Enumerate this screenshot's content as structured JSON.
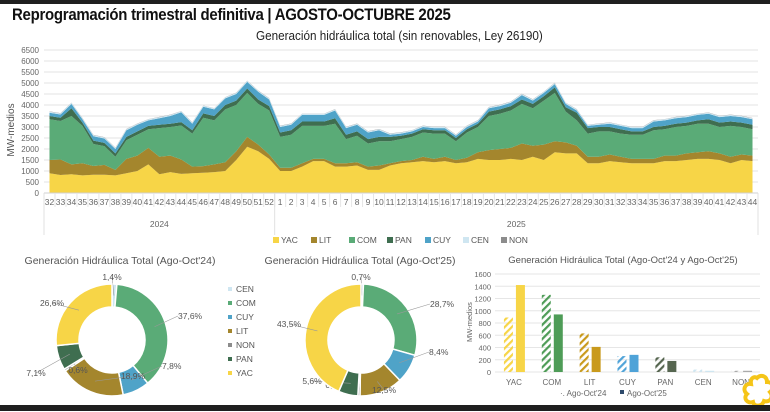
{
  "header": {
    "title": "Reprogramación trimestral definitiva | AGOSTO-OCTUBRE 2025",
    "subtitle": "Generación hidráulica total (sin renovables, Ley 26190)"
  },
  "chart_data": [
    {
      "type": "area",
      "stacked": true,
      "title": "Generación hidráulica total (sin renovables, Ley 26190)",
      "xlabel": "",
      "ylabel": "MW-medios",
      "ylim": [
        0,
        6500
      ],
      "yticks": [
        0,
        500,
        1000,
        1500,
        2000,
        2500,
        3000,
        3500,
        4000,
        4500,
        5000,
        5500,
        6000,
        6500
      ],
      "grid": true,
      "legend": "bottom",
      "x_groups": [
        {
          "label": "2024",
          "weeks": [
            "32",
            "33",
            "34",
            "35",
            "36",
            "37",
            "38",
            "39",
            "40",
            "41",
            "42",
            "43",
            "44",
            "45",
            "46",
            "47",
            "48",
            "49",
            "50",
            "51",
            "52"
          ]
        },
        {
          "label": "2025",
          "weeks": [
            "1",
            "2",
            "3",
            "4",
            "5",
            "6",
            "7",
            "8",
            "9",
            "10",
            "11",
            "12",
            "13",
            "14",
            "15",
            "16",
            "17",
            "18",
            "19",
            "20",
            "21",
            "22",
            "23",
            "24",
            "25",
            "26",
            "27",
            "28",
            "29",
            "30",
            "31",
            "32",
            "33",
            "34",
            "35",
            "36",
            "37",
            "38",
            "39",
            "40",
            "41",
            "42",
            "43",
            "44"
          ]
        }
      ],
      "series": [
        {
          "name": "YAC",
          "color": "#f7d547",
          "values": [
            900,
            820,
            850,
            800,
            830,
            830,
            800,
            900,
            1000,
            1300,
            850,
            950,
            870,
            900,
            920,
            950,
            1000,
            1500,
            2100,
            1900,
            1550,
            1000,
            1000,
            1200,
            1450,
            1450,
            1200,
            1200,
            1250,
            1050,
            1050,
            1250,
            1350,
            1400,
            1450,
            1400,
            1450,
            1350,
            1400,
            1550,
            1500,
            1500,
            1550,
            1500,
            1650,
            1500,
            1850,
            1800,
            1800,
            1350,
            1350,
            1450,
            1400,
            1350,
            1350,
            1350,
            1450,
            1450,
            1500,
            1550,
            1550,
            1500,
            1350,
            1500,
            1450
          ]
        },
        {
          "name": "LIT",
          "color": "#a4862d",
          "values": [
            600,
            700,
            450,
            550,
            400,
            450,
            250,
            650,
            700,
            750,
            800,
            750,
            650,
            300,
            300,
            350,
            400,
            400,
            450,
            300,
            200,
            150,
            150,
            150,
            100,
            100,
            150,
            150,
            150,
            150,
            200,
            100,
            100,
            100,
            200,
            150,
            200,
            150,
            200,
            300,
            450,
            500,
            500,
            750,
            500,
            700,
            500,
            500,
            350,
            300,
            300,
            300,
            250,
            200,
            200,
            200,
            250,
            250,
            300,
            300,
            350,
            300,
            300,
            250,
            250
          ]
        },
        {
          "name": "COM",
          "color": "#5aab77",
          "values": [
            1850,
            1750,
            2200,
            1700,
            1000,
            850,
            600,
            850,
            950,
            850,
            1300,
            1300,
            1550,
            1500,
            2200,
            2000,
            2400,
            2100,
            2000,
            1850,
            2000,
            1400,
            1500,
            1700,
            1500,
            1500,
            1800,
            1100,
            1200,
            1050,
            1100,
            1000,
            1000,
            1050,
            1100,
            1150,
            1050,
            850,
            1150,
            1150,
            1550,
            1600,
            1700,
            1800,
            1700,
            2000,
            2200,
            1400,
            1150,
            1050,
            1150,
            1050,
            1050,
            1100,
            1100,
            1300,
            1200,
            1300,
            1250,
            1300,
            1250,
            1200,
            1400,
            1250,
            1200
          ]
        },
        {
          "name": "PAN",
          "color": "#3f6e50",
          "values": [
            150,
            150,
            350,
            150,
            150,
            150,
            150,
            150,
            150,
            150,
            150,
            150,
            150,
            150,
            200,
            200,
            200,
            200,
            200,
            200,
            200,
            200,
            200,
            200,
            200,
            200,
            250,
            200,
            200,
            200,
            200,
            200,
            150,
            150,
            150,
            150,
            150,
            150,
            150,
            150,
            200,
            200,
            200,
            200,
            200,
            200,
            250,
            200,
            350,
            250,
            200,
            200,
            200,
            150,
            150,
            150,
            150,
            150,
            150,
            150,
            200,
            200,
            200,
            200,
            200
          ]
        },
        {
          "name": "CUY",
          "color": "#4fa3c8",
          "values": [
            150,
            150,
            200,
            150,
            200,
            200,
            200,
            300,
            300,
            250,
            300,
            350,
            450,
            300,
            300,
            300,
            300,
            300,
            300,
            350,
            300,
            250,
            250,
            300,
            300,
            300,
            350,
            300,
            300,
            300,
            300,
            100,
            100,
            100,
            100,
            100,
            100,
            100,
            100,
            100,
            150,
            150,
            150,
            200,
            150,
            150,
            150,
            150,
            100,
            100,
            100,
            150,
            150,
            150,
            150,
            250,
            250,
            250,
            250,
            250,
            250,
            250,
            250,
            250,
            250
          ]
        },
        {
          "name": "CEN",
          "color": "#cfe6f1",
          "values": [
            50,
            50,
            50,
            50,
            50,
            50,
            50,
            50,
            50,
            50,
            50,
            50,
            50,
            50,
            50,
            50,
            50,
            50,
            50,
            50,
            50,
            50,
            50,
            50,
            50,
            50,
            50,
            50,
            50,
            50,
            50,
            50,
            50,
            50,
            50,
            50,
            50,
            50,
            50,
            50,
            50,
            50,
            50,
            50,
            50,
            50,
            50,
            50,
            50,
            50,
            50,
            50,
            50,
            50,
            50,
            50,
            50,
            50,
            50,
            50,
            50,
            50,
            50,
            50,
            50
          ]
        },
        {
          "name": "NON",
          "color": "#8c8c8c",
          "values": [
            10,
            10,
            10,
            10,
            10,
            10,
            10,
            10,
            10,
            10,
            10,
            10,
            10,
            10,
            10,
            10,
            10,
            10,
            10,
            10,
            10,
            10,
            10,
            10,
            10,
            10,
            10,
            10,
            10,
            10,
            10,
            10,
            10,
            10,
            10,
            10,
            10,
            10,
            10,
            10,
            10,
            10,
            10,
            10,
            10,
            10,
            10,
            10,
            10,
            10,
            10,
            10,
            10,
            10,
            10,
            10,
            10,
            10,
            10,
            10,
            10,
            10,
            10,
            10,
            10
          ]
        }
      ]
    },
    {
      "type": "pie",
      "donut": true,
      "title": "Generación Hidráulica Total (Ago-Oct'24)",
      "legend": "right",
      "slices": [
        {
          "name": "CEN",
          "value": 1.4,
          "label": "1,4%",
          "color": "#cfe6f1"
        },
        {
          "name": "COM",
          "value": 37.6,
          "label": "37,6%",
          "color": "#5aab77"
        },
        {
          "name": "CUY",
          "value": 7.8,
          "label": "7,8%",
          "color": "#4fa3c8"
        },
        {
          "name": "LIT",
          "value": 18.9,
          "label": "18,9%",
          "color": "#a4862d"
        },
        {
          "name": "NON",
          "value": 0.6,
          "label": "0,6%",
          "color": "#8c8c8c"
        },
        {
          "name": "PAN",
          "value": 7.1,
          "label": "7,1%",
          "color": "#3f6e50"
        },
        {
          "name": "YAC",
          "value": 26.6,
          "label": "26,6%",
          "color": "#f7d547"
        }
      ]
    },
    {
      "type": "pie",
      "donut": true,
      "title": "Generación Hidráulica Total (Ago-Oct'25)",
      "legend": "none",
      "slices": [
        {
          "name": "CEN",
          "value": 0.7,
          "label": "0,7%",
          "color": "#cfe6f1"
        },
        {
          "name": "COM",
          "value": 28.7,
          "label": "28,7%",
          "color": "#5aab77"
        },
        {
          "name": "CUY",
          "value": 8.4,
          "label": "8,4%",
          "color": "#4fa3c8"
        },
        {
          "name": "LIT",
          "value": 12.5,
          "label": "12,5%",
          "color": "#a4862d"
        },
        {
          "name": "NON",
          "value": 0.6,
          "label": "0,6%",
          "color": "#8c8c8c"
        },
        {
          "name": "PAN",
          "value": 5.6,
          "label": "5,6%",
          "color": "#3f6e50"
        },
        {
          "name": "YAC",
          "value": 43.5,
          "label": "43,5%",
          "color": "#f7d547"
        }
      ]
    },
    {
      "type": "bar",
      "title": "Generación Hidráulica Total (Ago-Oct'24 y Ago-Oct'25)",
      "xlabel": "",
      "ylabel": "MW-medios",
      "ylim": [
        0,
        1600
      ],
      "yticks": [
        0,
        200,
        400,
        600,
        800,
        1000,
        1200,
        1400,
        1600
      ],
      "grid": true,
      "legend": "bottom",
      "categories": [
        "YAC",
        "COM",
        "LIT",
        "CUY",
        "PAN",
        "CEN",
        "NON"
      ],
      "colors": [
        "#f7d547",
        "#4e9c57",
        "#c99a1c",
        "#4fa3d8",
        "#566650",
        "#cfe6f1",
        "#aaaaaa"
      ],
      "series": [
        {
          "name": "Ago-Oct'24",
          "pattern": "hatched",
          "values": [
            890,
            1260,
            630,
            260,
            240,
            40,
            20
          ]
        },
        {
          "name": "Ago-Oct'25",
          "pattern": "solid",
          "values": [
            1420,
            940,
            410,
            280,
            180,
            20,
            20
          ]
        }
      ]
    }
  ]
}
